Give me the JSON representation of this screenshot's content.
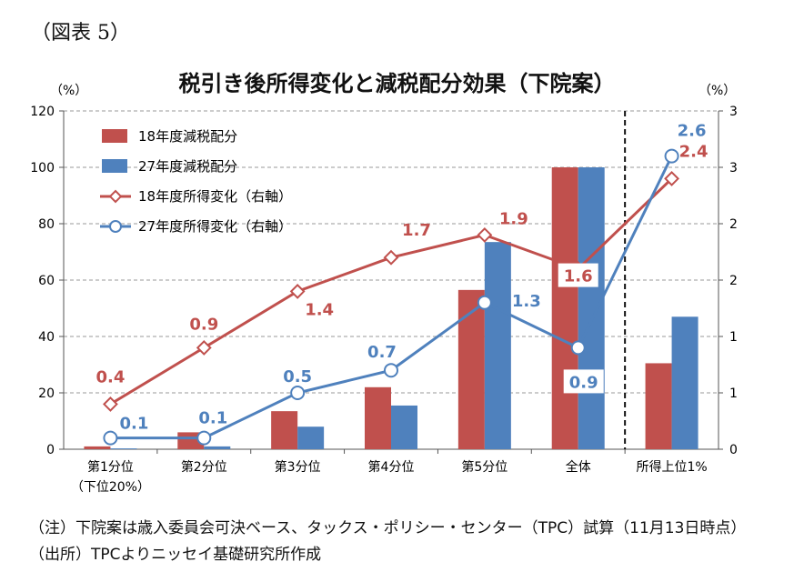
{
  "figure_label": "（図表 5）",
  "notes": {
    "line1": "（注）下院案は歳入委員会可決ベース、タックス・ポリシー・センター（TPC）試算（11月13日時点）",
    "line2": "（出所）TPCよりニッセイ基礎研究所作成"
  },
  "colors": {
    "red": "#c0504d",
    "blue": "#4f81bd"
  },
  "chart_data": {
    "type": "bar",
    "title": "税引き後所得変化と減税配分効果（下院案）",
    "left_axis": {
      "unit_label": "（%）",
      "ylim": [
        0,
        120
      ],
      "ticks": [
        "0",
        "20",
        "40",
        "60",
        "80",
        "100",
        "120"
      ]
    },
    "right_axis": {
      "unit_label": "（%）",
      "ylim": [
        0,
        3
      ],
      "ticks": [
        "0",
        "1",
        "1",
        "2",
        "2",
        "3",
        "3"
      ]
    },
    "categories": [
      {
        "line1": "第1分位",
        "line2": "（下位20%）"
      },
      {
        "line1": "第2分位",
        "line2": ""
      },
      {
        "line1": "第3分位",
        "line2": ""
      },
      {
        "line1": "第4分位",
        "line2": ""
      },
      {
        "line1": "第5分位",
        "line2": ""
      },
      {
        "line1": "全体",
        "line2": ""
      },
      {
        "line1": "所得上位1%",
        "line2": ""
      }
    ],
    "bar_series": [
      {
        "name": "18年度減税配分",
        "color": "#c0504d",
        "values": [
          1,
          6,
          13.5,
          22,
          56.5,
          100,
          30.5
        ]
      },
      {
        "name": "27年度減税配分",
        "color": "#4f81bd",
        "values": [
          0.3,
          1,
          8,
          15.5,
          73.5,
          100,
          47
        ]
      }
    ],
    "line_series": [
      {
        "name": "18年度所得変化（右軸）",
        "color": "#c0504d",
        "marker": "diamond",
        "values": [
          0.4,
          0.9,
          1.4,
          1.7,
          1.9,
          1.6,
          2.4
        ],
        "labels": [
          "0.4",
          "0.9",
          "1.4",
          "1.7",
          "1.9",
          "1.6",
          "2.4"
        ]
      },
      {
        "name": "27年度所得変化（右軸）",
        "color": "#4f81bd",
        "marker": "circle",
        "values": [
          0.1,
          0.1,
          0.5,
          0.7,
          1.3,
          0.9,
          2.6
        ],
        "labels": [
          "0.1",
          "0.1",
          "0.5",
          "0.7",
          "1.3",
          "0.9",
          "2.6"
        ]
      }
    ],
    "separator": "dashed vertical line between 全体 and 所得上位1%",
    "grid": true,
    "legend_position": "top-left"
  }
}
